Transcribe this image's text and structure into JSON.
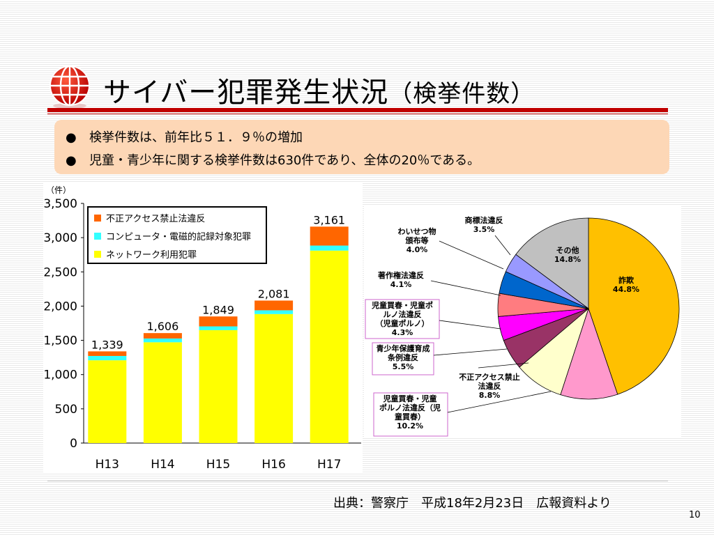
{
  "slide": {
    "title_main": "サイバー犯罪発生状況",
    "title_sub": "（検挙件数）",
    "bullet_1": "検挙件数は、前年比５１．９％の増加",
    "bullet_2": "児童・青少年に関する検挙件数は630件であり、全体の20％である。",
    "bullet_marker": "●",
    "source": "出典：警察庁　平成18年2月23日　広報資料より",
    "page": "10",
    "accent_color": "#c00000",
    "highlight_box_color": "#fdd7b6"
  },
  "chart_data": [
    {
      "type": "bar",
      "stacked": true,
      "unit_label": "（件）",
      "categories": [
        "H13",
        "H14",
        "H15",
        "H16",
        "H17"
      ],
      "ylim": [
        0,
        3500
      ],
      "yticks": [
        0,
        500,
        1000,
        1500,
        2000,
        2500,
        3000,
        3500
      ],
      "ytick_labels": [
        "0",
        "500",
        "1,000",
        "1,500",
        "2,000",
        "2,500",
        "3,000",
        "3,500"
      ],
      "grid": false,
      "legend_position": "top-left",
      "totals": [
        1339,
        1606,
        1849,
        2081,
        3161
      ],
      "total_labels": [
        "1,339",
        "1,606",
        "1,849",
        "2,081",
        "3,161"
      ],
      "series": [
        {
          "name": "ネットワーク利用犯罪",
          "color": "#ffff00",
          "values": [
            1209,
            1472,
            1649,
            1884,
            2811
          ]
        },
        {
          "name": "コンピュータ・電磁的記録対象犯罪",
          "color": "#33ffff",
          "values": [
            63,
            55,
            55,
            55,
            73
          ]
        },
        {
          "name": "不正アクセス禁止法違反",
          "color": "#ff6600",
          "values": [
            67,
            79,
            145,
            142,
            277
          ]
        }
      ]
    },
    {
      "type": "pie",
      "slices": [
        {
          "label": "詐欺",
          "pct": "44.8%",
          "value": 44.8,
          "color": "#ffc000"
        },
        {
          "label": "児童買春・児童ポルノ法違反（児童買春）",
          "pct": "10.2%",
          "value": 10.2,
          "color": "#ff99cc"
        },
        {
          "label": "不正アクセス禁止法違反",
          "pct": "8.8%",
          "value": 8.8,
          "color": "#ffffcc"
        },
        {
          "label": "青少年保護育成条例違反",
          "pct": "5.5%",
          "value": 5.5,
          "color": "#993366"
        },
        {
          "label": "児童買春・児童ポルノ法違反（児童ポルノ）",
          "pct": "4.3%",
          "value": 4.3,
          "color": "#ff00ff"
        },
        {
          "label": "著作権法違反",
          "pct": "4.1%",
          "value": 4.1,
          "color": "#ff7c80"
        },
        {
          "label": "わいせつ物頒布等",
          "pct": "4.0%",
          "value": 4.0,
          "color": "#0066cc"
        },
        {
          "label": "商標法違反",
          "pct": "3.5%",
          "value": 3.5,
          "color": "#9999ff"
        },
        {
          "label": "その他",
          "pct": "14.8%",
          "value": 14.8,
          "color": "#c0c0c0"
        }
      ],
      "label_lines": {
        "fraud": [
          "詐欺",
          "44.8%"
        ],
        "other": [
          "その他",
          "14.8%"
        ],
        "trademark": [
          "商標法違反",
          "3.5%"
        ],
        "obscene": [
          "わいせつ物",
          "頒布等",
          "4.0%"
        ],
        "copyright": [
          "著作権法違反",
          "4.1%"
        ],
        "child_porn": [
          "児童買春・児童ポ",
          "ルノ法違反",
          "（児童ポルノ）",
          "4.3%"
        ],
        "youth": [
          "青少年保護育成",
          "条例違反",
          "5.5%"
        ],
        "unauth": [
          "不正アクセス禁止",
          "法違反",
          "8.8%"
        ],
        "child_prost": [
          "児童買春・児童",
          "ポルノ法違反（児",
          "童買春）",
          "10.2%"
        ]
      }
    }
  ]
}
